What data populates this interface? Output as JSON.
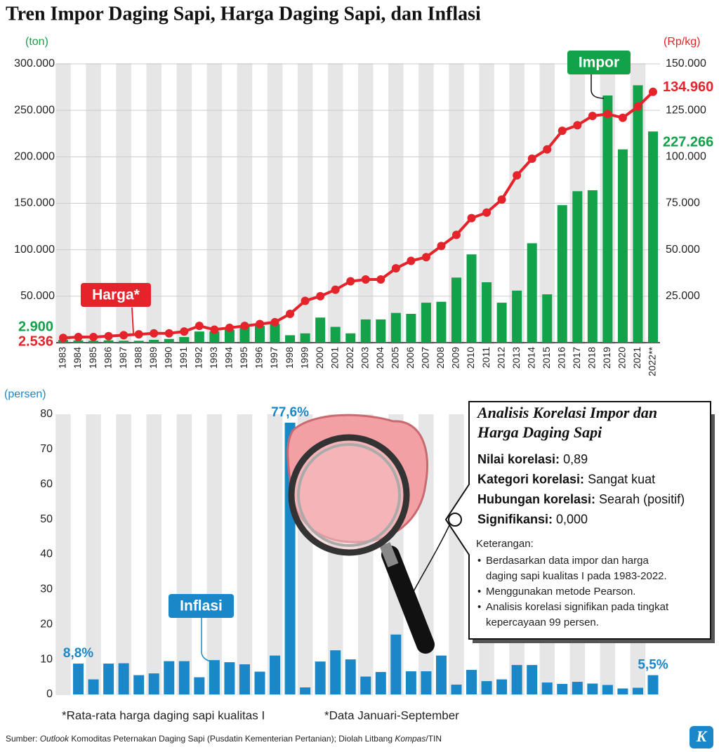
{
  "title": "Tren Impor Daging Sapi, Harga Daging Sapi, dan Inflasi",
  "chart_data": [
    {
      "type": "combo",
      "categories": [
        "1983",
        "1984",
        "1985",
        "1986",
        "1987",
        "1988",
        "1989",
        "1990",
        "1991",
        "1992",
        "1993",
        "1994",
        "1995",
        "1996",
        "1997",
        "1998",
        "1999",
        "2000",
        "2001",
        "2002",
        "2003",
        "2004",
        "2005",
        "2006",
        "2007",
        "2008",
        "2009",
        "2010",
        "2011",
        "2012",
        "2013",
        "2014",
        "2015",
        "2016",
        "2017",
        "2018",
        "2019",
        "2020",
        "2021",
        "2022**"
      ],
      "y_label": "(ton)",
      "y2_label": "(Rp/kg)",
      "ylim": [
        0,
        300000
      ],
      "yticks": [
        {
          "value": 50000,
          "label": "50.000"
        },
        {
          "value": 100000,
          "label": "100.000"
        },
        {
          "value": 150000,
          "label": "150.000"
        },
        {
          "value": 200000,
          "label": "200.000"
        },
        {
          "value": 250000,
          "label": "250.000"
        },
        {
          "value": 300000,
          "label": "300.000"
        }
      ],
      "y2lim": [
        0,
        150000
      ],
      "y2ticks": [
        {
          "value": 25000,
          "label": "25.000"
        },
        {
          "value": 50000,
          "label": "50.000"
        },
        {
          "value": 75000,
          "label": "75.000"
        },
        {
          "value": 100000,
          "label": "100.000"
        },
        {
          "value": 125000,
          "label": "125.000"
        },
        {
          "value": 150000,
          "label": "150.000"
        }
      ],
      "grid": true,
      "series": [
        {
          "name": "Impor",
          "type": "bar",
          "axis": "y",
          "color": "#12a24a",
          "values": [
            2900,
            2500,
            2000,
            2500,
            2000,
            2000,
            3000,
            4000,
            6000,
            12000,
            12000,
            14000,
            18000,
            18000,
            20000,
            8000,
            10000,
            27000,
            17000,
            10000,
            25000,
            25000,
            32000,
            31000,
            43000,
            44000,
            70000,
            95000,
            65000,
            43000,
            56000,
            107000,
            52000,
            148000,
            163000,
            164000,
            266000,
            208000,
            277000,
            227266
          ],
          "value_labels": [
            "2.900",
            null,
            null,
            null,
            null,
            null,
            null,
            null,
            null,
            null,
            null,
            null,
            null,
            null,
            null,
            null,
            null,
            null,
            null,
            null,
            null,
            null,
            null,
            null,
            null,
            null,
            null,
            null,
            null,
            null,
            null,
            null,
            null,
            null,
            null,
            null,
            null,
            null,
            null,
            "227.266"
          ]
        },
        {
          "name": "Harga*",
          "type": "line",
          "axis": "y2",
          "color": "#e5232b",
          "values": [
            2536,
            3000,
            3000,
            3500,
            4000,
            4500,
            5000,
            5000,
            6000,
            9000,
            7000,
            8000,
            9000,
            10000,
            11000,
            15500,
            22500,
            25000,
            28500,
            33000,
            34000,
            34000,
            40000,
            44000,
            46000,
            52000,
            58000,
            67000,
            70000,
            77000,
            90000,
            99000,
            104000,
            114000,
            117000,
            122000,
            123000,
            121000,
            127000,
            134960
          ],
          "value_labels": [
            "2.536",
            null,
            null,
            null,
            null,
            null,
            null,
            null,
            null,
            null,
            null,
            null,
            null,
            null,
            null,
            null,
            null,
            null,
            null,
            null,
            null,
            null,
            null,
            null,
            null,
            null,
            null,
            null,
            null,
            null,
            null,
            null,
            null,
            null,
            null,
            null,
            null,
            null,
            null,
            "134.960"
          ]
        }
      ]
    },
    {
      "type": "bar",
      "y_label": "(persen)",
      "ylim": [
        0,
        80
      ],
      "yticks": [
        0,
        10,
        20,
        30,
        40,
        50,
        60,
        70,
        80
      ],
      "grid": false,
      "series": [
        {
          "name": "Inflasi",
          "color": "#1a87c9",
          "values": [
            8.8,
            4.3,
            8.8,
            8.9,
            5.5,
            6.0,
            9.5,
            9.5,
            4.9,
            9.8,
            9.2,
            8.6,
            6.5,
            11.1,
            77.6,
            2.0,
            9.4,
            12.6,
            10.0,
            5.1,
            6.4,
            17.1,
            6.6,
            6.6,
            11.1,
            2.8,
            7.0,
            3.8,
            4.3,
            8.4,
            8.4,
            3.4,
            3.0,
            3.6,
            3.1,
            2.7,
            1.7,
            1.9,
            5.5
          ],
          "value_labels": [
            "8,8%",
            null,
            null,
            null,
            null,
            null,
            null,
            null,
            null,
            null,
            null,
            null,
            null,
            null,
            "77,6%",
            null,
            null,
            null,
            null,
            null,
            null,
            null,
            null,
            null,
            null,
            null,
            null,
            null,
            null,
            null,
            null,
            null,
            null,
            null,
            null,
            null,
            null,
            null,
            "5,5%"
          ]
        }
      ]
    }
  ],
  "info_box": {
    "title": "Analisis Korelasi Impor dan Harga Daging Sapi",
    "items": [
      {
        "key": "Nilai korelasi:",
        "value": "0,89"
      },
      {
        "key": "Kategori korelasi:",
        "value": "Sangat kuat"
      },
      {
        "key": "Hubungan korelasi:",
        "value": "Searah (positif)"
      },
      {
        "key": "Signifikansi:",
        "value": "0,000"
      }
    ],
    "notes_title": "Keterangan:",
    "notes": [
      [
        "Berdasarkan data impor dan harga",
        "daging sapi kualitas I pada 1983-2022."
      ],
      [
        "Menggunakan metode Pearson."
      ],
      [
        "Analisis korelasi signifikan pada tingkat",
        "kepercayaan 99 persen."
      ]
    ]
  },
  "footnotes": [
    "*Rata-rata harga daging sapi kualitas I",
    "*Data Januari-September"
  ],
  "source": [
    "Sumber: ",
    "Outlook",
    " Komoditas Peternakan Daging Sapi (Pusdatin Kementerian Pertanian); Diolah Litbang ",
    "Kompas",
    "/TIN"
  ],
  "logo": "K"
}
